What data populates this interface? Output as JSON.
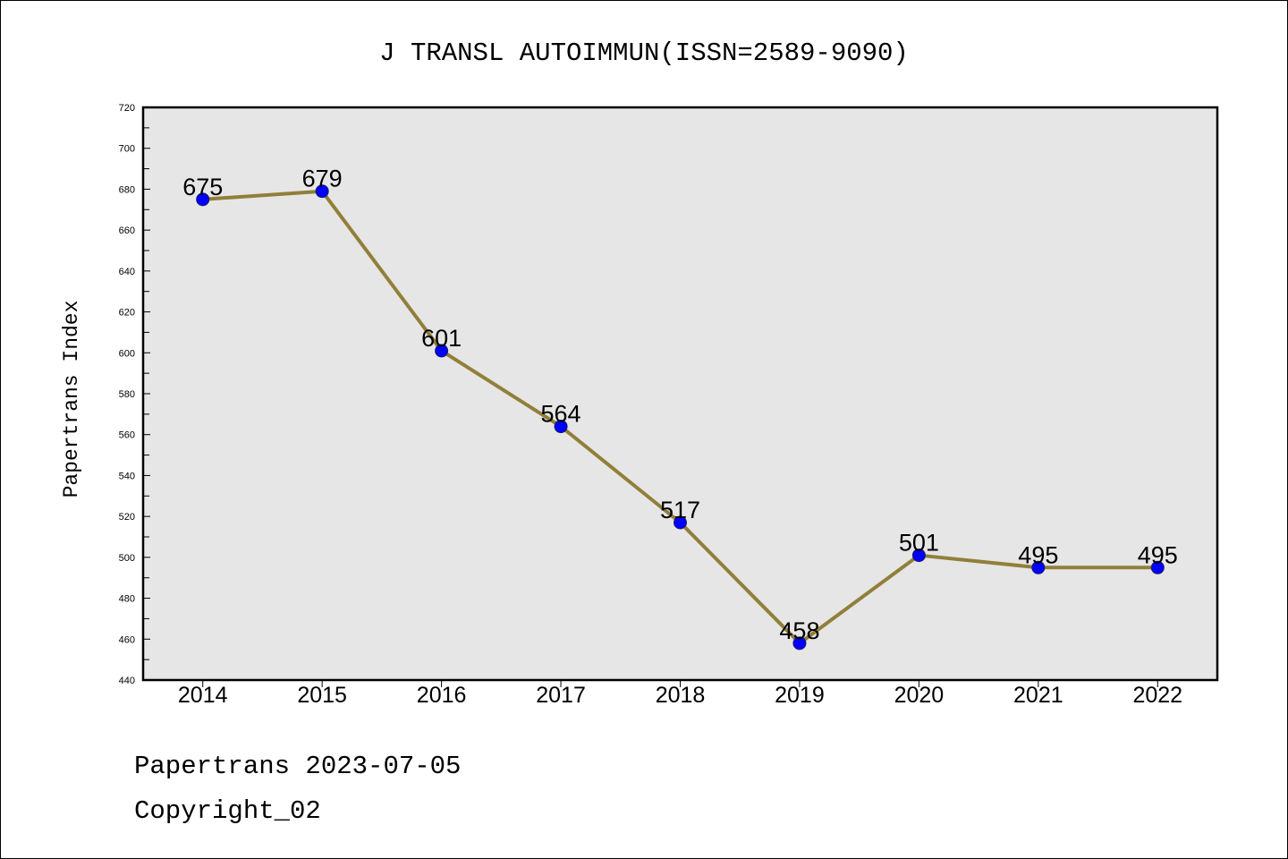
{
  "chart_data": {
    "type": "line",
    "title": "J TRANSL AUTOIMMUN(ISSN=2589-9090)",
    "xlabel": "",
    "ylabel": "Papertrans Index",
    "categories": [
      "2014",
      "2015",
      "2016",
      "2017",
      "2018",
      "2019",
      "2020",
      "2021",
      "2022"
    ],
    "series": [
      {
        "values": [
          675,
          679,
          601,
          564,
          517,
          458,
          501,
          495,
          495
        ]
      }
    ],
    "ylim": [
      440,
      720
    ],
    "yticks": [
      440,
      460,
      480,
      500,
      520,
      540,
      560,
      580,
      600,
      620,
      640,
      660,
      680,
      700,
      720
    ],
    "grid": false,
    "data_labels": true,
    "legend": "none"
  },
  "footer": {
    "date_line": "Papertrans 2023-07-05",
    "copyright": "Copyright_02"
  },
  "colors": {
    "line": "#917f3a",
    "marker": "#0000ff",
    "marker_edge": "#1a1a6a",
    "plot_background": "#e6e6e6",
    "axes": "#000000"
  }
}
